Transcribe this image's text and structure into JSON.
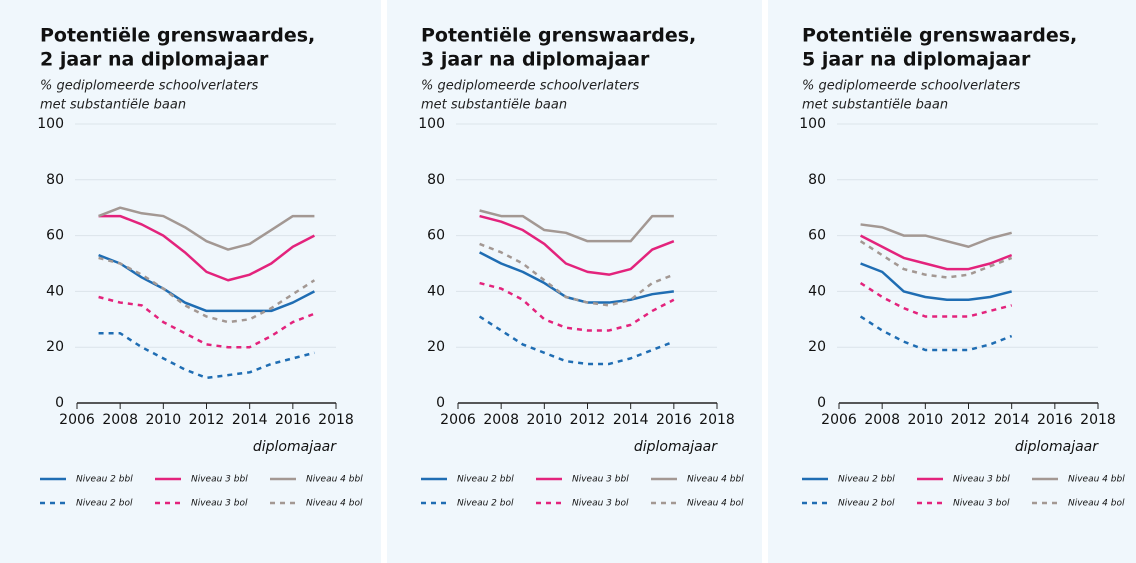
{
  "chart_data": [
    {
      "type": "line",
      "title": [
        "Potentiële grenswaardes,",
        "2 jaar na diplomajaar"
      ],
      "subtitle": [
        "% gediplomeerde schoolverlaters",
        "met substantiële baan"
      ],
      "x_label": "diplomajaar",
      "x": [
        2007,
        2008,
        2009,
        2010,
        2011,
        2012,
        2013,
        2014,
        2015,
        2016,
        2017
      ],
      "xlim": [
        2006,
        2018
      ],
      "xticks": [
        2006,
        2008,
        2010,
        2012,
        2014,
        2016,
        2018
      ],
      "ylim": [
        0,
        100
      ],
      "yticks": [
        0,
        20,
        40,
        60,
        80,
        100
      ],
      "grid": true,
      "series": [
        {
          "name": "Niveau 2 bbl",
          "color": "#1f6db3",
          "dashed": false,
          "values": [
            53,
            50,
            45,
            41,
            36,
            33,
            33,
            33,
            33,
            36,
            40
          ]
        },
        {
          "name": "Niveau 3 bbl",
          "color": "#e3237c",
          "dashed": false,
          "values": [
            67,
            67,
            64,
            60,
            54,
            47,
            44,
            46,
            50,
            56,
            60
          ]
        },
        {
          "name": "Niveau 4 bbl",
          "color": "#a39893",
          "dashed": false,
          "values": [
            67,
            70,
            68,
            67,
            63,
            58,
            55,
            57,
            62,
            67,
            67
          ]
        },
        {
          "name": "Niveau 2 bol",
          "color": "#1f6db3",
          "dashed": true,
          "values": [
            25,
            25,
            20,
            16,
            12,
            9,
            10,
            11,
            14,
            16,
            18
          ]
        },
        {
          "name": "Niveau 3 bol",
          "color": "#e3237c",
          "dashed": true,
          "values": [
            38,
            36,
            35,
            29,
            25,
            21,
            20,
            20,
            24,
            29,
            32
          ]
        },
        {
          "name": "Niveau 4 bol",
          "color": "#a39893",
          "dashed": true,
          "values": [
            52,
            50,
            46,
            41,
            35,
            31,
            29,
            30,
            34,
            39,
            44
          ]
        }
      ]
    },
    {
      "type": "line",
      "title": [
        "Potentiële grenswaardes,",
        "3 jaar na diplomajaar"
      ],
      "subtitle": [
        "% gediplomeerde schoolverlaters",
        "met substantiële baan"
      ],
      "x_label": "diplomajaar",
      "x": [
        2007,
        2008,
        2009,
        2010,
        2011,
        2012,
        2013,
        2014,
        2015,
        2016
      ],
      "xlim": [
        2006,
        2018
      ],
      "xticks": [
        2006,
        2008,
        2010,
        2012,
        2014,
        2016,
        2018
      ],
      "ylim": [
        0,
        100
      ],
      "yticks": [
        0,
        20,
        40,
        60,
        80,
        100
      ],
      "grid": true,
      "series": [
        {
          "name": "Niveau 2 bbl",
          "color": "#1f6db3",
          "dashed": false,
          "values": [
            54,
            50,
            47,
            43,
            38,
            36,
            36,
            37,
            39,
            40
          ]
        },
        {
          "name": "Niveau 3 bbl",
          "color": "#e3237c",
          "dashed": false,
          "values": [
            67,
            65,
            62,
            57,
            50,
            47,
            46,
            48,
            55,
            58
          ]
        },
        {
          "name": "Niveau 4 bbl",
          "color": "#a39893",
          "dashed": false,
          "values": [
            69,
            67,
            67,
            62,
            61,
            58,
            58,
            58,
            67,
            67
          ]
        },
        {
          "name": "Niveau 2 bol",
          "color": "#1f6db3",
          "dashed": true,
          "values": [
            31,
            26,
            21,
            18,
            15,
            14,
            14,
            16,
            19,
            22
          ]
        },
        {
          "name": "Niveau 3 bol",
          "color": "#e3237c",
          "dashed": true,
          "values": [
            43,
            41,
            37,
            30,
            27,
            26,
            26,
            28,
            33,
            37
          ]
        },
        {
          "name": "Niveau 4 bol",
          "color": "#a39893",
          "dashed": true,
          "values": [
            57,
            54,
            50,
            44,
            38,
            36,
            35,
            37,
            43,
            46
          ]
        }
      ]
    },
    {
      "type": "line",
      "title": [
        "Potentiële grenswaardes,",
        "5 jaar na diplomajaar"
      ],
      "subtitle": [
        "% gediplomeerde schoolverlaters",
        "met substantiële baan"
      ],
      "x_label": "diplomajaar",
      "x": [
        2007,
        2008,
        2009,
        2010,
        2011,
        2012,
        2013,
        2014
      ],
      "xlim": [
        2006,
        2018
      ],
      "xticks": [
        2006,
        2008,
        2010,
        2012,
        2014,
        2016,
        2018
      ],
      "ylim": [
        0,
        100
      ],
      "yticks": [
        0,
        20,
        40,
        60,
        80,
        100
      ],
      "grid": true,
      "series": [
        {
          "name": "Niveau 2 bbl",
          "color": "#1f6db3",
          "dashed": false,
          "values": [
            50,
            47,
            40,
            38,
            37,
            37,
            38,
            40
          ]
        },
        {
          "name": "Niveau 3 bbl",
          "color": "#e3237c",
          "dashed": false,
          "values": [
            60,
            56,
            52,
            50,
            48,
            48,
            50,
            53
          ]
        },
        {
          "name": "Niveau 4 bbl",
          "color": "#a39893",
          "dashed": false,
          "values": [
            64,
            63,
            60,
            60,
            58,
            56,
            59,
            61
          ]
        },
        {
          "name": "Niveau 2 bol",
          "color": "#1f6db3",
          "dashed": true,
          "values": [
            31,
            26,
            22,
            19,
            19,
            19,
            21,
            24
          ]
        },
        {
          "name": "Niveau 3 bol",
          "color": "#e3237c",
          "dashed": true,
          "values": [
            43,
            38,
            34,
            31,
            31,
            31,
            33,
            35
          ]
        },
        {
          "name": "Niveau 4 bol",
          "color": "#a39893",
          "dashed": true,
          "values": [
            58,
            53,
            48,
            46,
            45,
            46,
            49,
            52
          ]
        }
      ]
    }
  ]
}
